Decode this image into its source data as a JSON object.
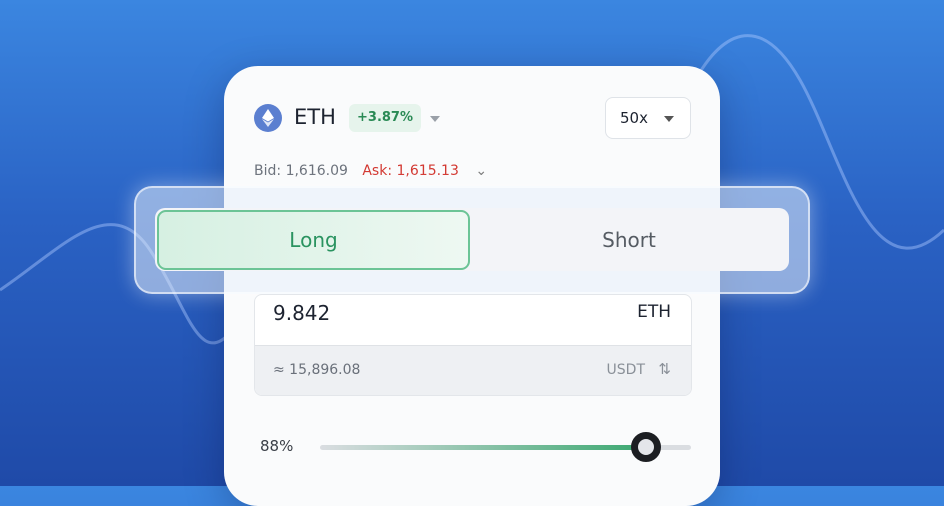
{
  "header": {
    "asset": "ETH",
    "change": "+3.87%",
    "leverage": "50x"
  },
  "quote": {
    "bid_label": "Bid:",
    "bid": "1,616.09",
    "ask_label": "Ask:",
    "ask": "1,615.13"
  },
  "side": {
    "long": "Long",
    "short": "Short",
    "selected": "Long"
  },
  "amount": {
    "value": "9.842",
    "unit": "ETH",
    "converted": "≈ 15,896.08",
    "converted_unit": "USDT"
  },
  "slider": {
    "label": "88%",
    "percent": 88
  },
  "colors": {
    "accent_green": "#3aa870",
    "ask_red": "#d2352e",
    "background": "#2a62c4"
  }
}
